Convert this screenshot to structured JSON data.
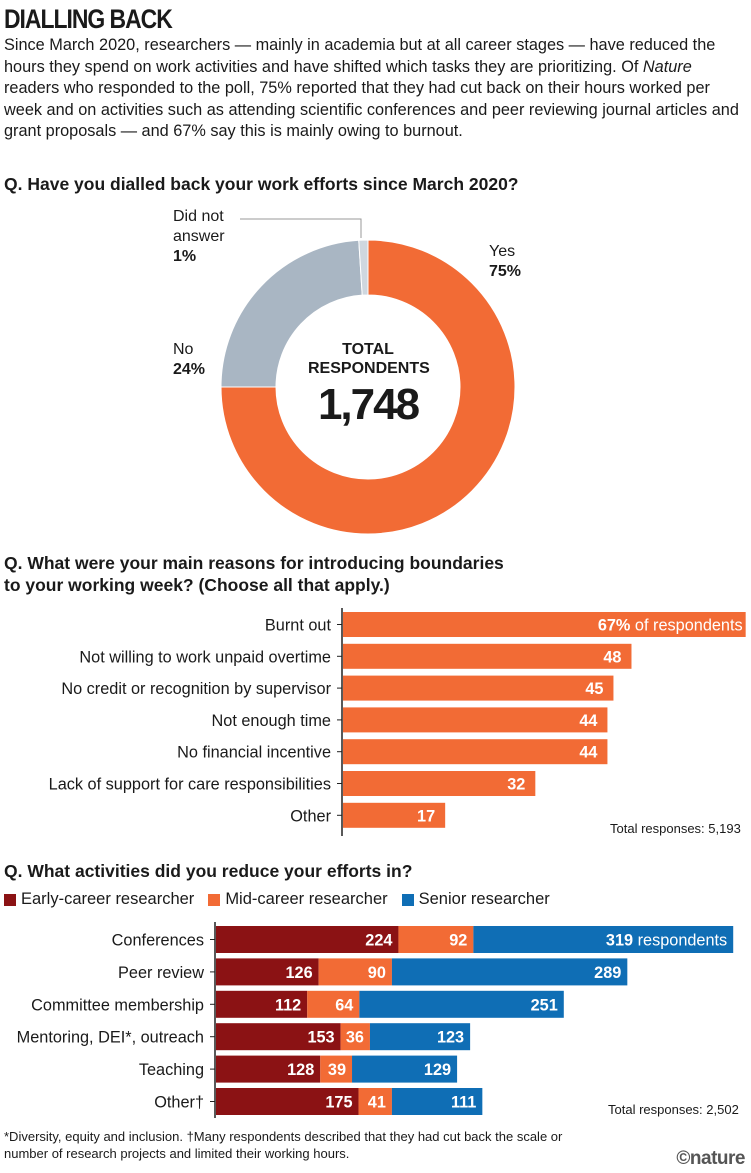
{
  "header": {
    "title": "DIALLING BACK",
    "intro_pre": "Since March 2020, researchers — mainly in academia but at all career stages — have reduced the hours they spend on work activities and have shifted which tasks they are prioritizing. Of ",
    "intro_italic": "Nature",
    "intro_post": " readers who responded to the poll, 75% reported that they had cut back on their hours worked per week and on activities such as attending scientific conferences and peer reviewing journal articles and grant proposals — and 67% say this is mainly owing to burnout."
  },
  "colors": {
    "orange": "#f26b35",
    "grey": "#a9b6c3",
    "light_grey": "#cfd7df",
    "early": "#8b1214",
    "mid": "#f26b35",
    "senior": "#0f6eb5"
  },
  "chart_data": [
    {
      "type": "pie",
      "title": "Q. Have you dialled back your work efforts since March 2020?",
      "center_label": "TOTAL RESPONDENTS",
      "center_value": "1,748",
      "slices": [
        {
          "label": "Yes",
          "value": 75,
          "display": "75%"
        },
        {
          "label": "No",
          "value": 24,
          "display": "24%"
        },
        {
          "label": "Did not answer",
          "label_lines": [
            "Did not",
            "answer"
          ],
          "value": 1,
          "display": "1%"
        }
      ]
    },
    {
      "type": "bar",
      "title_lines": [
        "Q. What were your main reasons for introducing boundaries",
        "to your working week? (Choose all that apply.)"
      ],
      "categories": [
        "Burnt out",
        "Not willing to work unpaid overtime",
        "No credit or recognition by supervisor",
        "Not enough time",
        "No financial incentive",
        "Lack of support for care responsibilities",
        "Other"
      ],
      "values": [
        67,
        48,
        45,
        44,
        44,
        32,
        17
      ],
      "first_label_suffix": "of respondents",
      "value_suffix": "%",
      "note": "Total responses: 5,193"
    },
    {
      "type": "bar",
      "stacked": true,
      "title": "Q. What activities did you reduce your efforts in?",
      "categories": [
        "Conferences",
        "Peer review",
        "Committee membership",
        "Mentoring, DEI*, outreach",
        "Teaching",
        "Other†"
      ],
      "series": [
        {
          "name": "Early-career researcher",
          "values": [
            224,
            126,
            112,
            153,
            128,
            175
          ]
        },
        {
          "name": "Mid-career researcher",
          "values": [
            92,
            90,
            64,
            36,
            39,
            41
          ]
        },
        {
          "name": "Senior researcher",
          "values": [
            319,
            289,
            251,
            123,
            129,
            111
          ]
        }
      ],
      "first_label_suffix": "respondents",
      "note": "Total responses: 2,502"
    }
  ],
  "footnote": "*Diversity, equity and inclusion. †Many respondents described that they had cut back the scale or number of research projects and limited their working hours.",
  "logo": "©nature"
}
